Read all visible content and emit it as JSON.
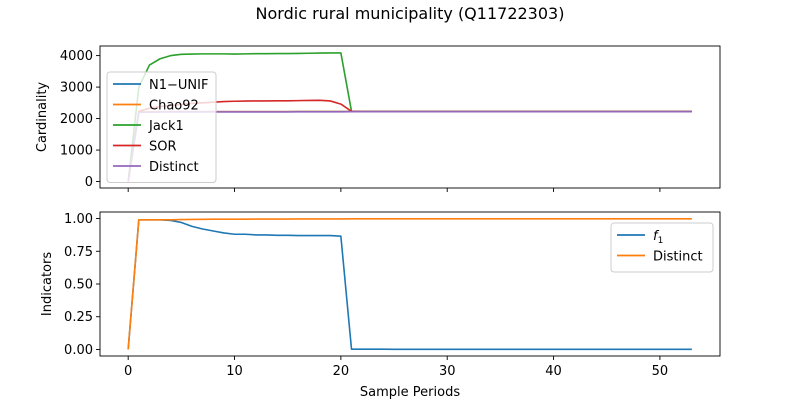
{
  "figure": {
    "title": "Nordic rural municipality (Q11722303)"
  },
  "colors": {
    "blue": "#1f77b4",
    "orange": "#ff7f0e",
    "green": "#2ca02c",
    "red": "#d62728",
    "purple": "#9467bd"
  },
  "chart_data": [
    {
      "type": "line",
      "panel": "top",
      "title": "Nordic rural municipality (Q11722303)",
      "xlabel": "",
      "ylabel": "Cardinality",
      "xlim": [
        -2.65,
        55.65
      ],
      "ylim": [
        -205,
        4305
      ],
      "yticks": [
        0,
        1000,
        2000,
        3000,
        4000
      ],
      "grid": false,
      "legend_position": "center-left",
      "series": [
        {
          "name": "N1−UNIF",
          "color": "#1f77b4",
          "x": [
            0,
            1,
            2,
            3,
            4,
            5,
            6,
            7,
            8,
            9,
            10,
            11,
            12,
            13,
            14,
            15,
            16,
            17,
            18,
            19,
            20,
            21,
            22,
            23,
            24,
            25,
            26,
            27,
            28,
            29,
            30,
            31,
            32,
            33,
            34,
            35,
            36,
            37,
            38,
            39,
            40,
            41,
            42,
            43,
            44,
            45,
            46,
            47,
            48,
            49,
            50,
            51,
            52,
            53
          ],
          "y": [
            0,
            2210,
            2215,
            2218,
            2220,
            2220,
            2220,
            2220,
            2220,
            2220,
            2220,
            2220,
            2220,
            2220,
            2220,
            2220,
            2222,
            2222,
            2222,
            2222,
            2222,
            2225,
            2225,
            2225,
            2225,
            2225,
            2225,
            2225,
            2225,
            2225,
            2225,
            2225,
            2225,
            2225,
            2225,
            2225,
            2225,
            2225,
            2225,
            2225,
            2225,
            2225,
            2225,
            2225,
            2225,
            2225,
            2225,
            2225,
            2225,
            2225,
            2225,
            2225,
            2225,
            2225
          ]
        },
        {
          "name": "Chao92",
          "color": "#ff7f0e",
          "x": [
            0,
            1,
            2,
            3,
            4,
            5,
            6,
            7,
            8,
            9,
            10,
            11,
            12,
            13,
            14,
            15,
            16,
            17,
            18,
            19,
            20,
            21,
            22,
            23,
            24,
            25,
            26,
            27,
            28,
            29,
            30,
            31,
            32,
            33,
            34,
            35,
            36,
            37,
            38,
            39,
            40,
            41,
            42,
            43,
            44,
            45,
            46,
            47,
            48,
            49,
            50,
            51,
            52,
            53
          ],
          "y": [
            0,
            2210,
            2215,
            2218,
            2220,
            2220,
            2220,
            2220,
            2220,
            2220,
            2220,
            2220,
            2220,
            2220,
            2220,
            2220,
            2222,
            2222,
            2222,
            2222,
            2222,
            2225,
            2225,
            2225,
            2225,
            2225,
            2225,
            2225,
            2225,
            2225,
            2225,
            2225,
            2225,
            2225,
            2225,
            2225,
            2225,
            2225,
            2225,
            2225,
            2225,
            2225,
            2225,
            2225,
            2225,
            2225,
            2225,
            2225,
            2225,
            2225,
            2225,
            2225,
            2225,
            2225
          ]
        },
        {
          "name": "Jack1",
          "color": "#2ca02c",
          "x": [
            0,
            1,
            2,
            3,
            4,
            5,
            6,
            7,
            8,
            9,
            10,
            11,
            12,
            13,
            14,
            15,
            16,
            17,
            18,
            19,
            20,
            21,
            22,
            23,
            24,
            25,
            26,
            27,
            28,
            29,
            30,
            31,
            32,
            33,
            34,
            35,
            36,
            37,
            38,
            39,
            40,
            41,
            42,
            43,
            44,
            45,
            46,
            47,
            48,
            49,
            50,
            51,
            52,
            53
          ],
          "y": [
            0,
            3000,
            3700,
            3900,
            4000,
            4040,
            4050,
            4055,
            4055,
            4055,
            4050,
            4055,
            4060,
            4060,
            4065,
            4065,
            4070,
            4075,
            4080,
            4085,
            4085,
            2230,
            2225,
            2225,
            2225,
            2225,
            2225,
            2225,
            2225,
            2225,
            2225,
            2225,
            2225,
            2225,
            2225,
            2225,
            2225,
            2225,
            2225,
            2225,
            2225,
            2225,
            2225,
            2225,
            2225,
            2225,
            2225,
            2225,
            2225,
            2225,
            2225,
            2225,
            2225,
            2225
          ]
        },
        {
          "name": "SOR",
          "color": "#d62728",
          "x": [
            0,
            1,
            2,
            3,
            4,
            5,
            6,
            7,
            8,
            9,
            10,
            11,
            12,
            13,
            14,
            15,
            16,
            17,
            18,
            19,
            20,
            21,
            22,
            23,
            24,
            25,
            26,
            27,
            28,
            29,
            30,
            31,
            32,
            33,
            34,
            35,
            36,
            37,
            38,
            39,
            40,
            41,
            42,
            43,
            44,
            45,
            46,
            47,
            48,
            49,
            50,
            51,
            52,
            53
          ],
          "y": [
            0,
            2230,
            2330,
            2380,
            2420,
            2450,
            2480,
            2500,
            2520,
            2540,
            2550,
            2555,
            2560,
            2560,
            2565,
            2565,
            2570,
            2575,
            2580,
            2560,
            2460,
            2230,
            2225,
            2225,
            2225,
            2225,
            2225,
            2225,
            2225,
            2225,
            2225,
            2225,
            2225,
            2225,
            2225,
            2225,
            2225,
            2225,
            2225,
            2225,
            2225,
            2225,
            2225,
            2225,
            2225,
            2225,
            2225,
            2225,
            2225,
            2225,
            2225,
            2225,
            2225,
            2225
          ]
        },
        {
          "name": "Distinct",
          "color": "#9467bd",
          "x": [
            0,
            1,
            2,
            3,
            4,
            5,
            6,
            7,
            8,
            9,
            10,
            11,
            12,
            13,
            14,
            15,
            16,
            17,
            18,
            19,
            20,
            21,
            22,
            23,
            24,
            25,
            26,
            27,
            28,
            29,
            30,
            31,
            32,
            33,
            34,
            35,
            36,
            37,
            38,
            39,
            40,
            41,
            42,
            43,
            44,
            45,
            46,
            47,
            48,
            49,
            50,
            51,
            52,
            53
          ],
          "y": [
            0,
            2200,
            2205,
            2208,
            2210,
            2210,
            2210,
            2210,
            2210,
            2210,
            2210,
            2210,
            2210,
            2212,
            2212,
            2212,
            2215,
            2215,
            2215,
            2215,
            2215,
            2220,
            2220,
            2220,
            2220,
            2220,
            2220,
            2220,
            2220,
            2220,
            2220,
            2220,
            2220,
            2220,
            2220,
            2220,
            2220,
            2220,
            2220,
            2220,
            2220,
            2220,
            2220,
            2220,
            2220,
            2220,
            2220,
            2220,
            2220,
            2220,
            2220,
            2220,
            2220,
            2220
          ]
        }
      ]
    },
    {
      "type": "line",
      "panel": "bottom",
      "title": "",
      "xlabel": "Sample Periods",
      "ylabel": "Indicators",
      "xlim": [
        -2.65,
        55.65
      ],
      "ylim": [
        -0.05,
        1.05
      ],
      "xticks": [
        0,
        10,
        20,
        30,
        40,
        50
      ],
      "yticks": [
        "0.00",
        "0.25",
        "0.50",
        "0.75",
        "1.00"
      ],
      "grid": false,
      "legend_position": "upper-right",
      "series": [
        {
          "name": "f1",
          "name_main": "f",
          "name_sub": "1",
          "color": "#1f77b4",
          "x": [
            0,
            1,
            2,
            3,
            4,
            5,
            6,
            7,
            8,
            9,
            10,
            11,
            12,
            13,
            14,
            15,
            16,
            17,
            18,
            19,
            20,
            21,
            22,
            23,
            24,
            25,
            26,
            27,
            28,
            29,
            30,
            31,
            32,
            33,
            34,
            35,
            36,
            37,
            38,
            39,
            40,
            41,
            42,
            43,
            44,
            45,
            46,
            47,
            48,
            49,
            50,
            51,
            52,
            53
          ],
          "y": [
            0,
            0.99,
            0.99,
            0.99,
            0.985,
            0.97,
            0.94,
            0.92,
            0.905,
            0.89,
            0.88,
            0.88,
            0.875,
            0.875,
            0.872,
            0.872,
            0.87,
            0.87,
            0.87,
            0.87,
            0.865,
            0.002,
            0.002,
            0.002,
            0.002,
            0.001,
            0.001,
            0.001,
            0.001,
            0.001,
            0.001,
            0.001,
            0.001,
            0.001,
            0.001,
            0.001,
            0.001,
            0.001,
            0.001,
            0.001,
            0.001,
            0.001,
            0.001,
            0.001,
            0.001,
            0.001,
            0.001,
            0.001,
            0.001,
            0.001,
            0.001,
            0.001,
            0.001,
            0.001
          ]
        },
        {
          "name": "Distinct",
          "color": "#ff7f0e",
          "x": [
            0,
            1,
            2,
            3,
            4,
            5,
            6,
            7,
            8,
            9,
            10,
            11,
            12,
            13,
            14,
            15,
            16,
            17,
            18,
            19,
            20,
            21,
            22,
            23,
            24,
            25,
            26,
            27,
            28,
            29,
            30,
            31,
            32,
            33,
            34,
            35,
            36,
            37,
            38,
            39,
            40,
            41,
            42,
            43,
            44,
            45,
            46,
            47,
            48,
            49,
            50,
            51,
            52,
            53
          ],
          "y": [
            0,
            0.99,
            0.99,
            0.99,
            0.99,
            0.992,
            0.993,
            0.994,
            0.995,
            0.995,
            0.995,
            0.995,
            0.996,
            0.996,
            0.996,
            0.996,
            0.997,
            0.997,
            0.997,
            0.997,
            0.997,
            0.998,
            0.998,
            0.998,
            0.998,
            0.998,
            0.998,
            0.998,
            0.998,
            0.998,
            0.998,
            0.998,
            0.998,
            0.998,
            0.998,
            0.998,
            0.998,
            0.998,
            0.998,
            0.998,
            0.998,
            0.998,
            0.998,
            0.998,
            0.998,
            0.998,
            0.998,
            0.998,
            0.998,
            0.998,
            0.998,
            0.998,
            0.998,
            0.998
          ]
        }
      ]
    }
  ]
}
